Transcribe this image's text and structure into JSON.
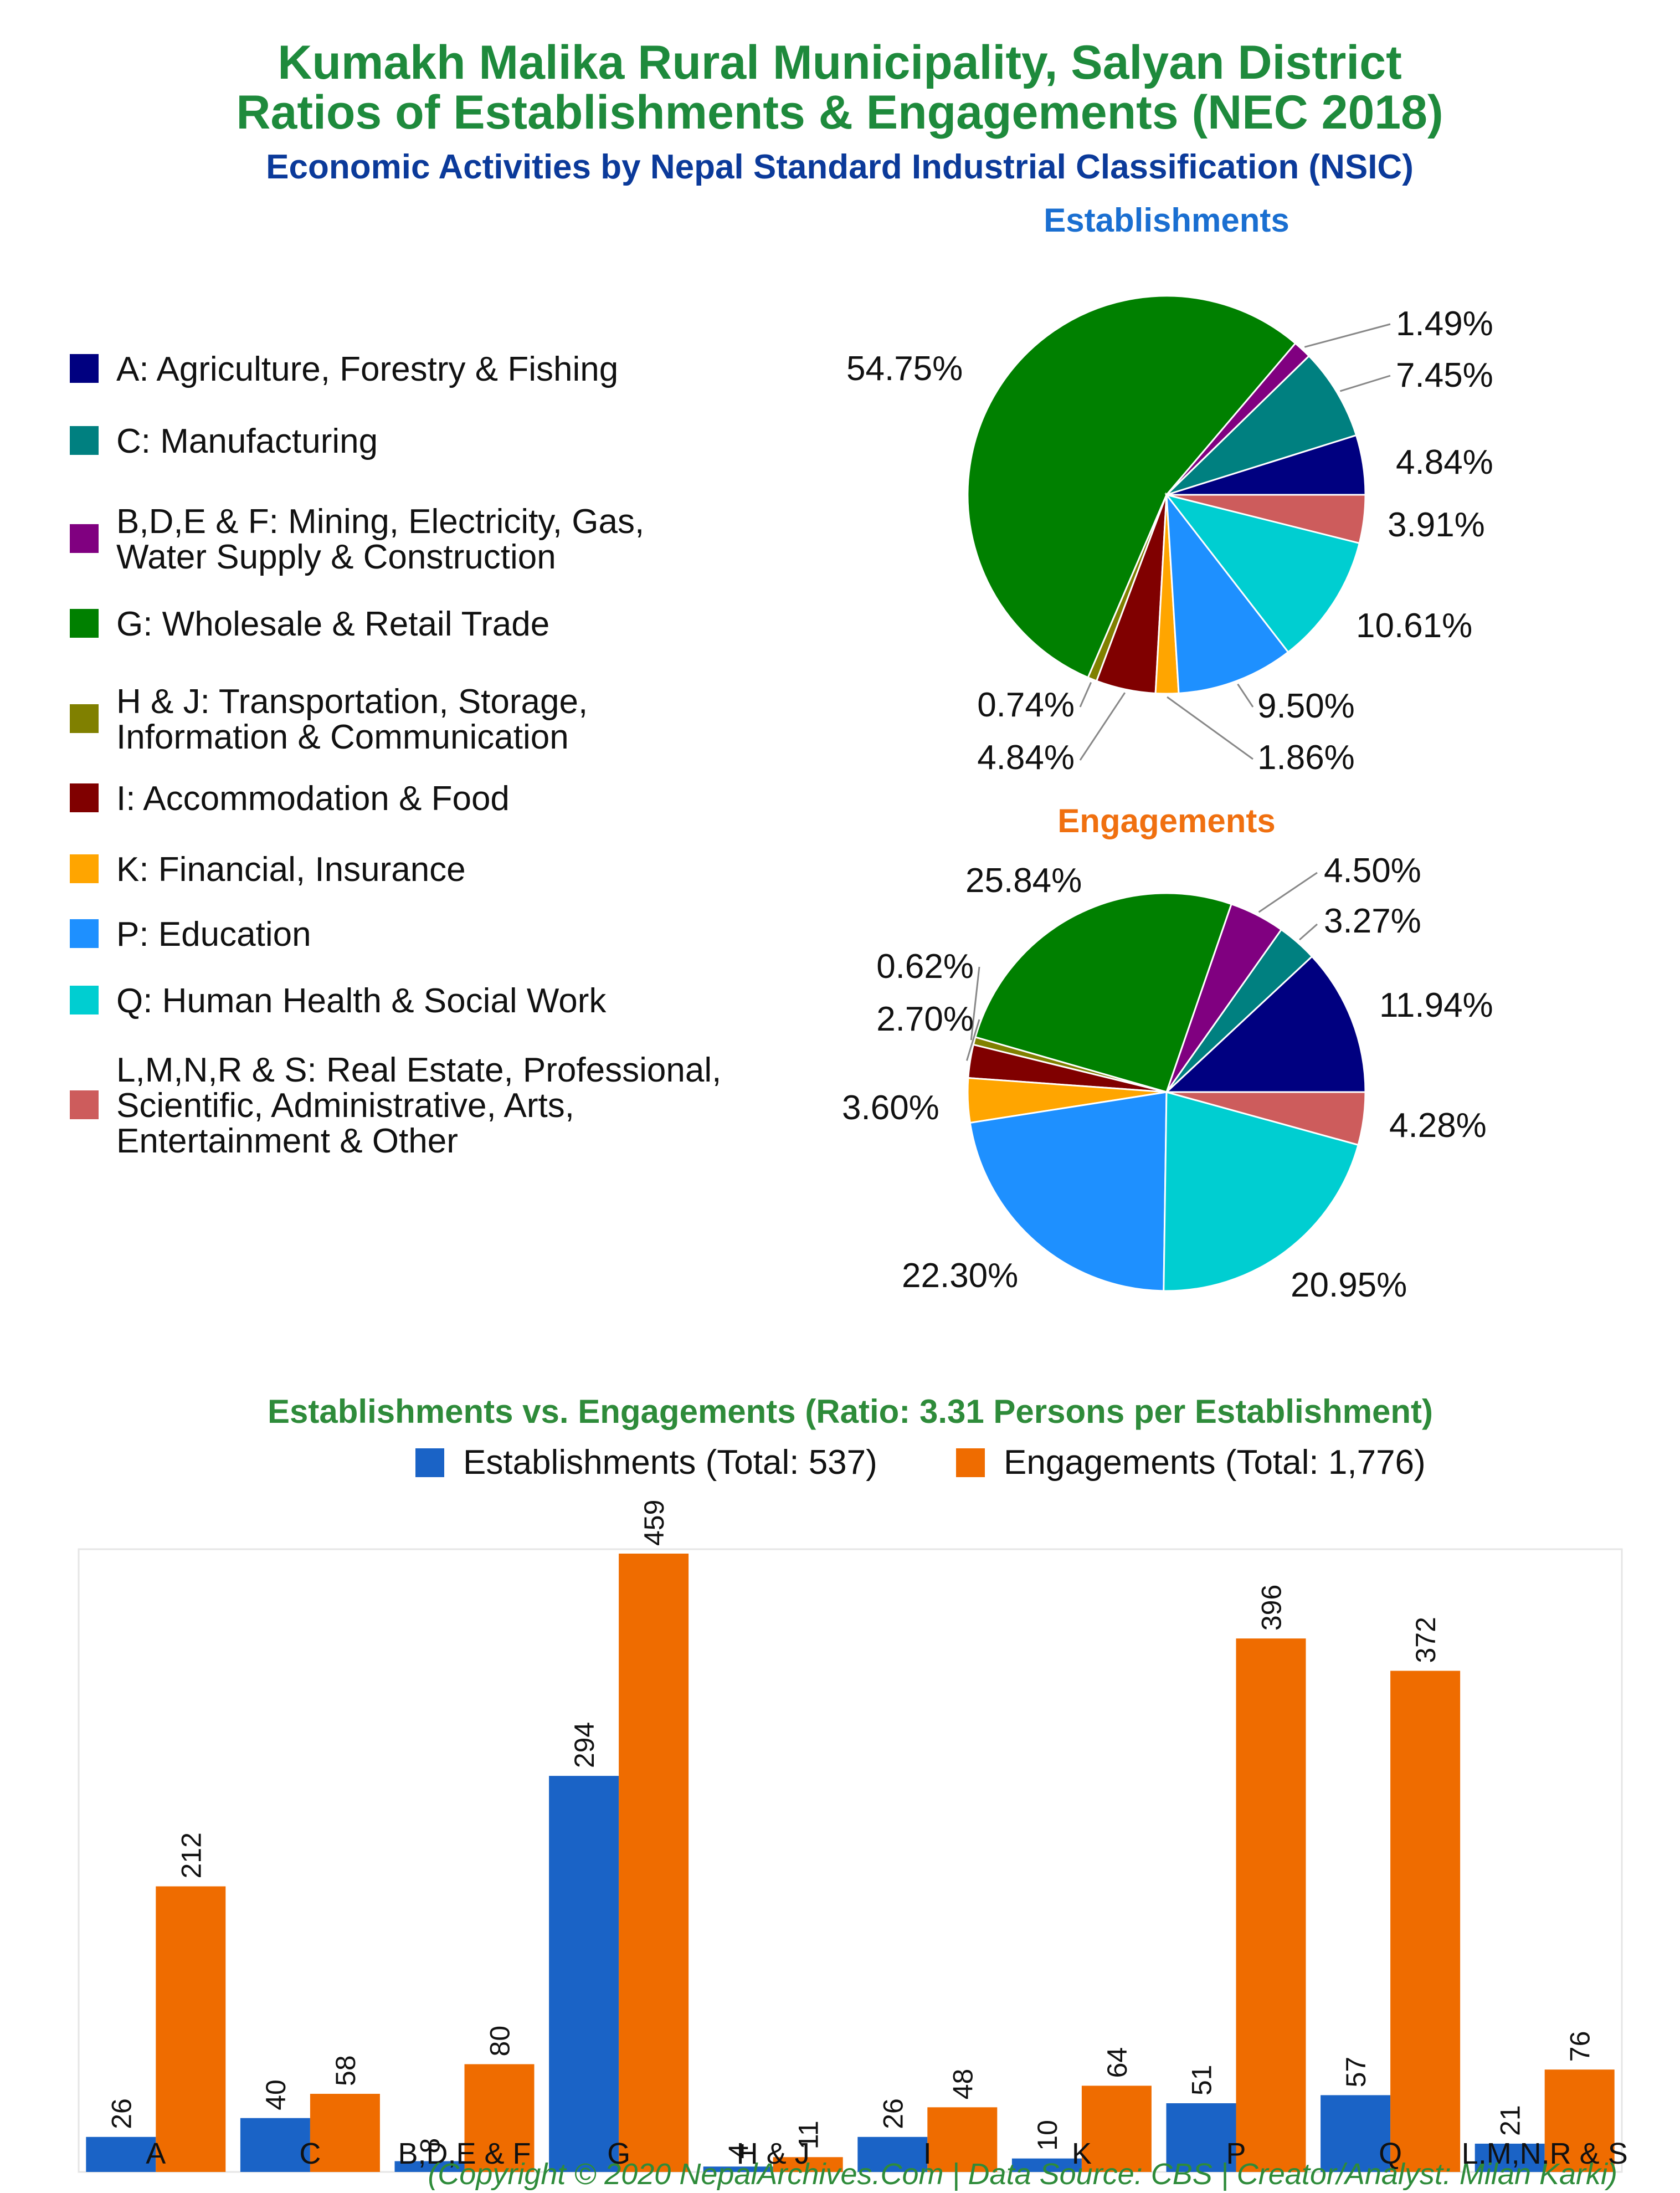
{
  "header": {
    "title_line1": "Kumakh Malika Rural Municipality, Salyan District",
    "title_line2": "Ratios of Establishments & Engagements (NEC 2018)",
    "subtitle": "Economic Activities by Nepal Standard Industrial Classification (NSIC)"
  },
  "colors": {
    "title": "#1e8a3c",
    "subtitle": "#0b3a9a",
    "establishments_title": "#1a6fd1",
    "engagements_title": "#f07010",
    "bar_establishments": "#1a63c6",
    "bar_engagements": "#ef6c00",
    "footer": "#2e8b3a"
  },
  "legend": [
    {
      "lines": [
        "A: Agriculture, Forestry & Fishing"
      ],
      "color": "#000080"
    },
    {
      "lines": [
        "C: Manufacturing"
      ],
      "color": "#008080"
    },
    {
      "lines": [
        "B,D,E & F: Mining, Electricity, Gas,",
        "Water Supply & Construction"
      ],
      "color": "#800080"
    },
    {
      "lines": [
        "G: Wholesale & Retail Trade"
      ],
      "color": "#008000"
    },
    {
      "lines": [
        "H & J: Transportation, Storage,",
        "Information & Communication"
      ],
      "color": "#808000"
    },
    {
      "lines": [
        "I: Accommodation & Food"
      ],
      "color": "#800000"
    },
    {
      "lines": [
        "K: Financial, Insurance"
      ],
      "color": "#ffa500"
    },
    {
      "lines": [
        "P: Education"
      ],
      "color": "#1e90ff"
    },
    {
      "lines": [
        "Q: Human Health & Social Work"
      ],
      "color": "#00ced1"
    },
    {
      "lines": [
        "L,M,N,R & S: Real Estate, Professional,",
        "Scientific, Administrative, Arts,",
        "Entertainment & Other"
      ],
      "color": "#cd5c5c"
    }
  ],
  "chart_data": [
    {
      "type": "pie",
      "title": "Establishments",
      "labels": [
        "A",
        "C",
        "B,D,E & F",
        "G",
        "H & J",
        "I",
        "K",
        "P",
        "Q",
        "L,M,N,R & S"
      ],
      "values": [
        4.84,
        7.45,
        1.49,
        54.75,
        0.74,
        4.84,
        1.86,
        9.5,
        10.61,
        3.91
      ],
      "value_labels": [
        "4.84%",
        "7.45%",
        "1.49%",
        "54.75%",
        "0.74%",
        "4.84%",
        "1.86%",
        "9.50%",
        "10.61%",
        "3.91%"
      ]
    },
    {
      "type": "pie",
      "title": "Engagements",
      "labels": [
        "A",
        "C",
        "B,D,E & F",
        "G",
        "H & J",
        "I",
        "K",
        "P",
        "Q",
        "L,M,N,R & S"
      ],
      "values": [
        11.94,
        3.27,
        4.5,
        25.84,
        0.62,
        2.7,
        3.6,
        22.3,
        20.95,
        4.28
      ],
      "value_labels": [
        "11.94%",
        "3.27%",
        "4.50%",
        "25.84%",
        "0.62%",
        "2.70%",
        "3.60%",
        "22.30%",
        "20.95%",
        "4.28%"
      ]
    },
    {
      "type": "bar",
      "title": "Establishments vs. Engagements (Ratio: 3.31 Persons per Establishment)",
      "categories": [
        "A",
        "C",
        "B,D,E & F",
        "G",
        "H & J",
        "I",
        "K",
        "P",
        "Q",
        "L,M,N,R & S"
      ],
      "series": [
        {
          "name": "Establishments (Total: 537)",
          "values": [
            26,
            40,
            8,
            294,
            4,
            26,
            10,
            51,
            57,
            21
          ]
        },
        {
          "name": "Engagements (Total: 1,776)",
          "values": [
            212,
            58,
            80,
            459,
            11,
            48,
            64,
            396,
            372,
            76
          ]
        }
      ],
      "ylim": [
        0,
        459
      ],
      "legend": "top-center",
      "grid": false
    }
  ],
  "footer": "(Copyright © 2020 NepalArchives.Com | Data Source: CBS | Creator/Analyst: Milan Karki)"
}
